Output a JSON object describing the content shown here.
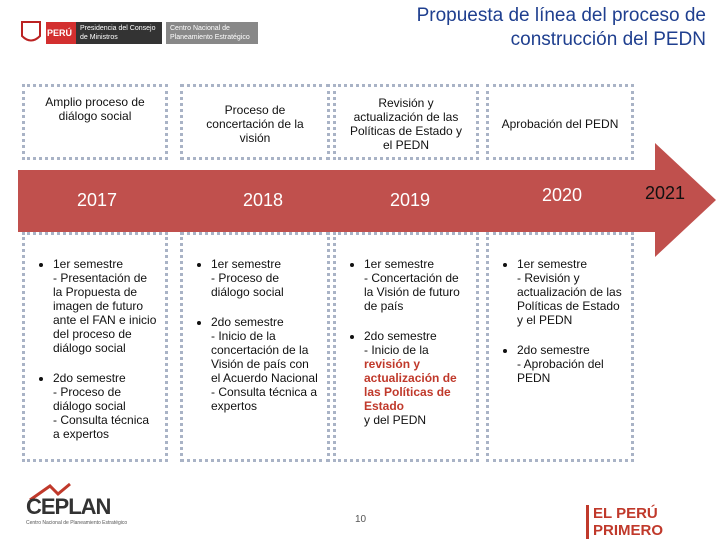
{
  "header": {
    "logo": {
      "country": "PERÚ",
      "ministry": "Presidencia del Consejo de Ministros",
      "agency": "Centro Nacional de Planeamiento Estratégico"
    },
    "title": "Propuesta de línea del proceso de construcción del PEDN"
  },
  "years": [
    "2017",
    "2018",
    "2019",
    "2020",
    "2021"
  ],
  "columns": [
    {
      "heading": "Amplio proceso de diálogo social",
      "bullets": [
        {
          "term": "1er semestre",
          "detail": [
            {
              "text": "- Presentación de la Propuesta de imagen de futuro ante el FAN e inicio del proceso de diálogo social"
            }
          ]
        },
        {
          "term": "2do semestre",
          "detail": [
            {
              "text": "- Proceso de diálogo social"
            },
            {
              "text": "- Consulta técnica a expertos",
              "newline": true
            }
          ]
        }
      ]
    },
    {
      "heading": "Proceso de concertación de la visión",
      "bullets": [
        {
          "term": "1er semestre",
          "detail": [
            {
              "text": "- Proceso de diálogo social"
            }
          ]
        },
        {
          "term": "2do semestre",
          "detail": [
            {
              "text": "- Inicio de la concertación de la Visión de país con el Acuerdo Nacional"
            },
            {
              "text": "- Consulta técnica a expertos",
              "newline": true
            }
          ]
        }
      ]
    },
    {
      "heading": "Revisión y actualización de las Políticas de Estado y el PEDN",
      "bullets": [
        {
          "term": "1er semestre",
          "detail": [
            {
              "text": "- Concertación de la Visión de futuro de país"
            }
          ]
        },
        {
          "term": "2do semestre",
          "detail": [
            {
              "text": "- Inicio de la "
            },
            {
              "text": "revisión y actualización de las Políticas de Estado",
              "highlight": true
            },
            {
              "text": " y del PEDN"
            }
          ]
        }
      ]
    },
    {
      "heading": "Aprobación del PEDN",
      "bullets": [
        {
          "term": "1er semestre",
          "detail": [
            {
              "text": "- Revisión y actualización de las Políticas de Estado y el PEDN"
            }
          ]
        },
        {
          "term": "2do semestre",
          "detail": [
            {
              "text": "- Aprobación del PEDN"
            }
          ]
        }
      ]
    }
  ],
  "footer": {
    "brand": "CEPLAN",
    "brand_caption": "Centro Nacional de Planeamiento Estratégico",
    "page": "10",
    "slogan": "EL PERÚ PRIMERO"
  }
}
